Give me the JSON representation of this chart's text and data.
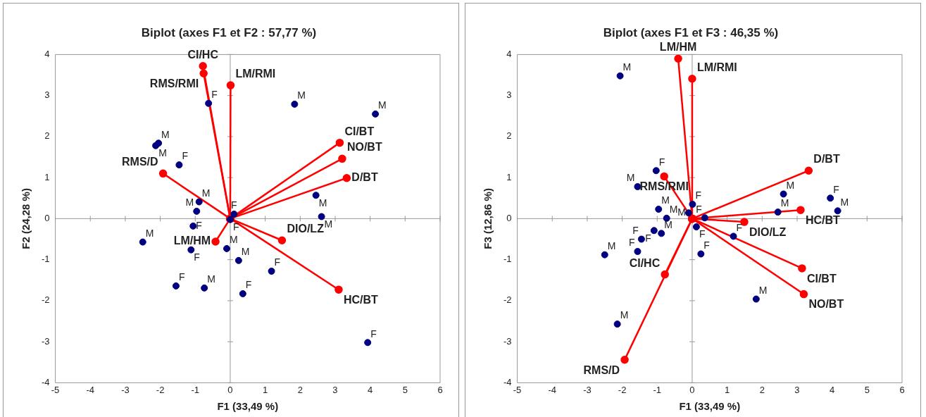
{
  "chart_data": [
    {
      "type": "scatter",
      "title": "Biplot (axes F1 et F2 : 57,77 %)",
      "xlabel": "F1 (33,49 %)",
      "ylabel": "F2 (24,28 %)",
      "xlim": [
        -5,
        6
      ],
      "xticks": [
        -5,
        -4,
        -3,
        -2,
        -1,
        0,
        1,
        2,
        3,
        4,
        5,
        6
      ],
      "ylim": [
        -4,
        4
      ],
      "yticks": [
        -4,
        -3,
        -2,
        -1,
        0,
        1,
        2,
        3,
        4
      ],
      "marker": "circle",
      "series": [
        {
          "type": "scatter",
          "color": "#000080",
          "x": [
            -0.62,
            -2.13,
            -2.05,
            -1.46,
            -0.89,
            -0.96,
            -1.06,
            -2.5,
            -0.1,
            0.24,
            -1.55,
            -0.74,
            0.36,
            0.11,
            0,
            -1.12,
            1.84,
            4.15,
            2.45,
            2.61,
            1.18,
            3.93
          ],
          "values": [
            2.81,
            1.78,
            1.84,
            1.31,
            0.41,
            0.18,
            -0.18,
            -0.57,
            -0.73,
            -1.02,
            -1.64,
            -1.69,
            -1.83,
            0.11,
            -0.02,
            -0.76,
            2.79,
            2.55,
            0.57,
            0.05,
            -1.28,
            -3.02
          ],
          "value_labels": [
            "F",
            "M",
            "M",
            "F",
            "M",
            "M",
            "F",
            "M",
            "M",
            "M",
            "F",
            "M",
            "F",
            "F",
            "F",
            "F",
            "M",
            "M",
            "M",
            "M",
            "F",
            "F"
          ]
        },
        {
          "type": "line",
          "name": "CI/HC",
          "color": "#ff0000",
          "x": [
            0,
            -0.78
          ],
          "values": [
            0,
            3.72
          ]
        },
        {
          "type": "line",
          "name": "RMS/RMI",
          "color": "#ff0000",
          "x": [
            0,
            -0.76
          ],
          "values": [
            0,
            3.54
          ]
        },
        {
          "type": "line",
          "name": "LM/RMI",
          "color": "#ff0000",
          "x": [
            0,
            0.01
          ],
          "values": [
            0,
            3.25
          ]
        },
        {
          "type": "line",
          "name": "CI/BT",
          "color": "#ff0000",
          "x": [
            0,
            3.13
          ],
          "values": [
            0,
            1.85
          ]
        },
        {
          "type": "line",
          "name": "NO/BT",
          "color": "#ff0000",
          "x": [
            0,
            3.2
          ],
          "values": [
            0,
            1.46
          ]
        },
        {
          "type": "line",
          "name": "D/BT",
          "color": "#ff0000",
          "x": [
            0,
            3.33
          ],
          "values": [
            0,
            0.99
          ]
        },
        {
          "type": "line",
          "name": "DIO/LZ",
          "color": "#ff0000",
          "x": [
            0,
            1.48
          ],
          "values": [
            0,
            -0.53
          ]
        },
        {
          "type": "line",
          "name": "HC/BT",
          "color": "#ff0000",
          "x": [
            0,
            3.1
          ],
          "values": [
            0,
            -1.73
          ]
        },
        {
          "type": "line",
          "name": "RMS/D",
          "color": "#ff0000",
          "x": [
            0,
            -1.92
          ],
          "values": [
            0,
            1.1
          ]
        },
        {
          "type": "line",
          "name": "LM/HM",
          "color": "#ff0000",
          "x": [
            0,
            -0.42
          ],
          "values": [
            0,
            -0.56
          ]
        }
      ]
    },
    {
      "type": "scatter",
      "title": "Biplot (axes F1 et F3 : 46,35 %)",
      "xlabel": "F1 (33,49 %)",
      "ylabel": "F3 (12,86 %)",
      "xlim": [
        -5,
        6
      ],
      "xticks": [
        -5,
        -4,
        -3,
        -2,
        -1,
        0,
        1,
        2,
        3,
        4,
        5,
        6
      ],
      "ylim": [
        -4,
        4
      ],
      "yticks": [
        -4,
        -3,
        -2,
        -1,
        0,
        1,
        2,
        3,
        4
      ],
      "marker": "circle",
      "series": [
        {
          "type": "scatter",
          "color": "#000080",
          "x": [
            -2.06,
            -1.03,
            -1.56,
            -0.96,
            -0.73,
            -0.1,
            0.01,
            -1.09,
            -0.88,
            -1.45,
            -1.56,
            -2.5,
            -2.14,
            0.12,
            0.25,
            2.61,
            2.45,
            3.95,
            4.16,
            0.36,
            1.18,
            1.83
          ],
          "values": [
            3.48,
            1.17,
            0.78,
            0.23,
            0.01,
            0.14,
            0.35,
            -0.29,
            -0.36,
            -0.5,
            -0.8,
            -0.88,
            -2.57,
            -0.2,
            -0.86,
            0.6,
            0.16,
            0.5,
            0.19,
            0.02,
            -0.43,
            -1.96
          ],
          "value_labels": [
            "M",
            "F",
            "M",
            "M",
            "M",
            "M",
            "F",
            "F",
            "M",
            "F",
            "F",
            "M",
            "M",
            "F",
            "F",
            "M",
            "M",
            "F",
            "M",
            "F",
            "F",
            "M"
          ]
        },
        {
          "type": "line",
          "name": "LM/HM",
          "color": "#ff0000",
          "x": [
            0,
            -0.4
          ],
          "values": [
            0,
            3.9
          ]
        },
        {
          "type": "line",
          "name": "LM/RMI",
          "color": "#ff0000",
          "x": [
            0,
            0
          ],
          "values": [
            0,
            3.41
          ]
        },
        {
          "type": "line",
          "name": "RMS/RMI",
          "color": "#ff0000",
          "x": [
            0,
            -0.8
          ],
          "values": [
            0,
            1.03
          ]
        },
        {
          "type": "line",
          "name": "CI/HC",
          "color": "#ff0000",
          "x": [
            0,
            -0.78
          ],
          "values": [
            0,
            -1.36
          ]
        },
        {
          "type": "line",
          "name": "RMS/D",
          "color": "#ff0000",
          "x": [
            0,
            -1.93
          ],
          "values": [
            0,
            -3.44
          ]
        },
        {
          "type": "line",
          "name": "D/BT",
          "color": "#ff0000",
          "x": [
            0,
            3.33
          ],
          "values": [
            0,
            1.17
          ]
        },
        {
          "type": "line",
          "name": "HC/BT",
          "color": "#ff0000",
          "x": [
            0,
            3.1
          ],
          "values": [
            0,
            0.21
          ]
        },
        {
          "type": "line",
          "name": "DIO/LZ",
          "color": "#ff0000",
          "x": [
            0,
            1.49
          ],
          "values": [
            0,
            -0.08
          ]
        },
        {
          "type": "line",
          "name": "CI/BT",
          "color": "#ff0000",
          "x": [
            0,
            3.14
          ],
          "values": [
            0,
            -1.21
          ]
        },
        {
          "type": "line",
          "name": "NO/BT",
          "color": "#ff0000",
          "x": [
            0,
            3.19
          ],
          "values": [
            0,
            -1.84
          ]
        }
      ]
    }
  ]
}
